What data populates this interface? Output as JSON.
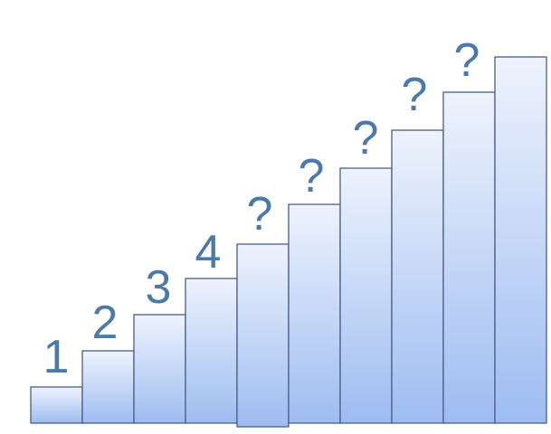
{
  "steps": [
    {
      "label": "1"
    },
    {
      "label": "2"
    },
    {
      "label": "3"
    },
    {
      "label": "4"
    },
    {
      "label": "?"
    },
    {
      "label": "?"
    },
    {
      "label": "?"
    },
    {
      "label": "?"
    },
    {
      "label": "?"
    },
    {
      "label": ""
    }
  ],
  "colors": {
    "step_top": "#eef3fd",
    "step_bottom": "#9ebcf1",
    "step_border": "#4a5f86",
    "label": "#4b79ab"
  }
}
